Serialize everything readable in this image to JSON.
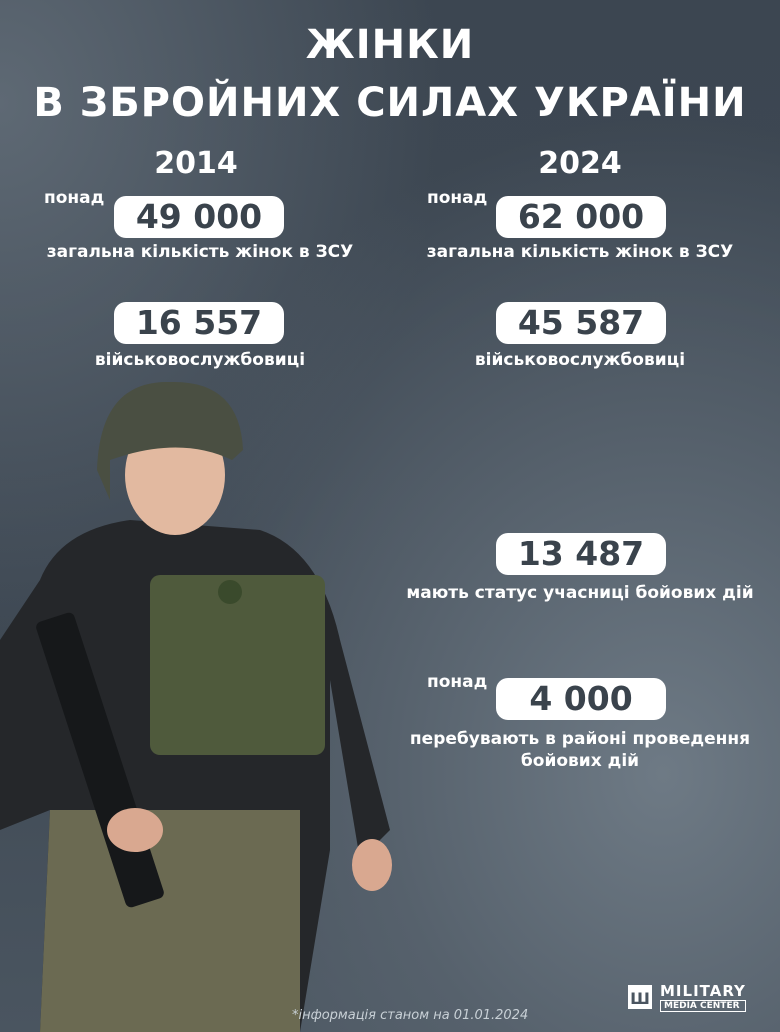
{
  "title": {
    "line1": "ЖІНКИ",
    "line2": "В ЗБРОЙНИХ СИЛАХ УКРАЇНИ"
  },
  "col2014": {
    "year": "2014",
    "total_prefix": "понад",
    "total": "49 000",
    "total_caption": "загальна кількість жінок в ЗСУ",
    "servicewomen": "16 557",
    "servicewomen_caption": "військовослужбовиці"
  },
  "col2024": {
    "year": "2024",
    "total_prefix": "понад",
    "total": "62 000",
    "total_caption": "загальна кількість жінок в ЗСУ",
    "servicewomen": "45 587",
    "servicewomen_caption": "військовослужбовиці",
    "veterans": "13 487",
    "veterans_caption": "мають статус учасниці бойових дій",
    "combat_prefix": "понад",
    "combat": "4 000",
    "combat_caption_1": "перебувають в районі проведення",
    "combat_caption_2": "бойових дій"
  },
  "footnote": "*інформація станом на 01.01.2024",
  "logo": {
    "line1": "MILITARY",
    "line2": "MEDIA CENTER"
  },
  "colors": {
    "background": "#3f4954",
    "pill": "#ffffff",
    "number": "#3a434c"
  }
}
